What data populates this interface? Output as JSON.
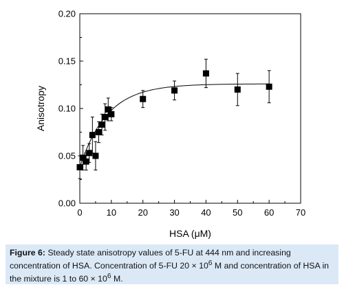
{
  "chart_data": {
    "type": "scatter",
    "xlabel": "HSA (μM)",
    "ylabel": "Anisotropy",
    "xlim": [
      0,
      70
    ],
    "ylim": [
      0.0,
      0.2
    ],
    "xticks": [
      "0",
      "10",
      "20",
      "30",
      "40",
      "50",
      "60",
      "70"
    ],
    "yticks": [
      "0.00",
      "0.05",
      "0.10",
      "0.15",
      "0.20"
    ],
    "grid": false,
    "marker": "square",
    "marker_color": "#000000",
    "fit_curve": true,
    "fit_plateau": 0.126,
    "points": [
      {
        "x": 0,
        "y": 0.038,
        "err": 0.012
      },
      {
        "x": 1,
        "y": 0.048,
        "err": 0.013
      },
      {
        "x": 2,
        "y": 0.044,
        "err": 0.009
      },
      {
        "x": 3,
        "y": 0.053,
        "err": 0.01
      },
      {
        "x": 4,
        "y": 0.072,
        "err": 0.019
      },
      {
        "x": 5,
        "y": 0.05,
        "err": 0.015
      },
      {
        "x": 6,
        "y": 0.075,
        "err": 0.011
      },
      {
        "x": 7,
        "y": 0.083,
        "err": 0.011
      },
      {
        "x": 8,
        "y": 0.091,
        "err": 0.014
      },
      {
        "x": 9,
        "y": 0.099,
        "err": 0.012
      },
      {
        "x": 10,
        "y": 0.094,
        "err": 0.007
      },
      {
        "x": 20,
        "y": 0.11,
        "err": 0.009
      },
      {
        "x": 30,
        "y": 0.119,
        "err": 0.01
      },
      {
        "x": 40,
        "y": 0.137,
        "err": 0.015
      },
      {
        "x": 50,
        "y": 0.12,
        "err": 0.017
      },
      {
        "x": 60,
        "y": 0.123,
        "err": 0.017
      }
    ]
  },
  "caption": {
    "label": "Figure 6:",
    "text_part1": " Steady state anisotropy values of 5-FU at 444 nm and increasing concentration of HSA. Concentration of 5-FU 20 × 10",
    "sup1": "6",
    "text_part2": " M and concentration of HSA in the mixture is 1 to 60 × 10",
    "sup2": "6",
    "text_part3": " M."
  }
}
